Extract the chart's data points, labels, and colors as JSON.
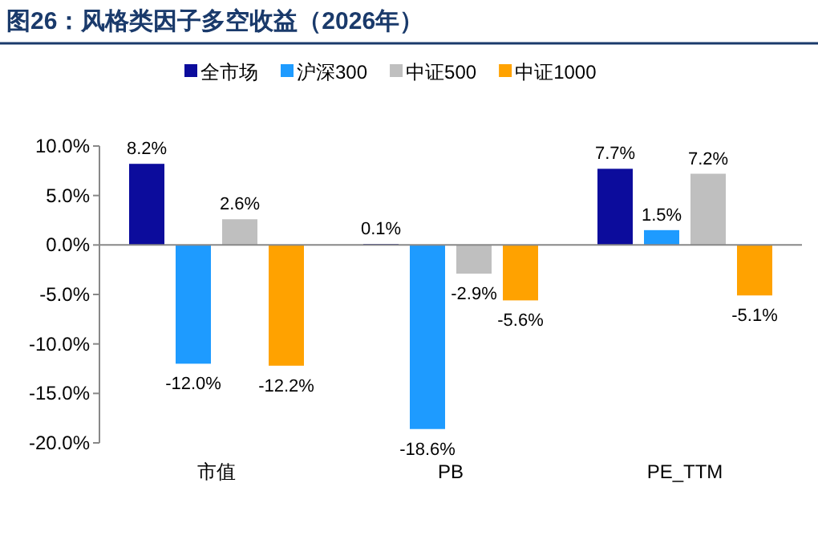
{
  "chart_data": {
    "type": "bar",
    "title": "图26：风格类因子多空收益（2026年）",
    "categories": [
      "市值",
      "PB",
      "PE_TTM"
    ],
    "series": [
      {
        "name": "全市场",
        "color": "#0c0c9c",
        "values": [
          8.2,
          0.1,
          7.7
        ],
        "value_labels": [
          "8.2%",
          "0.1%",
          "7.7%"
        ]
      },
      {
        "name": "沪深300",
        "color": "#1e9bff",
        "values": [
          -12.0,
          -18.6,
          1.5
        ],
        "value_labels": [
          "-12.0%",
          "-18.6%",
          "1.5%"
        ]
      },
      {
        "name": "中证500",
        "color": "#bfbfbf",
        "values": [
          2.6,
          -2.9,
          7.2
        ],
        "value_labels": [
          "2.6%",
          "-2.9%",
          "7.2%"
        ]
      },
      {
        "name": "中证1000",
        "color": "#ffa200",
        "values": [
          -12.2,
          -5.6,
          -5.1
        ],
        "value_labels": [
          "-12.2%",
          "-5.6%",
          "-5.1%"
        ]
      }
    ],
    "ylim": [
      -20,
      10
    ],
    "yticks": [
      {
        "value": 10,
        "label": "10.0%"
      },
      {
        "value": 5,
        "label": "5.0%"
      },
      {
        "value": 0,
        "label": "0.0%"
      },
      {
        "value": -5,
        "label": "-5.0%"
      },
      {
        "value": -10,
        "label": "-10.0%"
      },
      {
        "value": -15,
        "label": "-15.0%"
      },
      {
        "value": -20,
        "label": "-20.0%"
      }
    ],
    "legend": "top"
  }
}
